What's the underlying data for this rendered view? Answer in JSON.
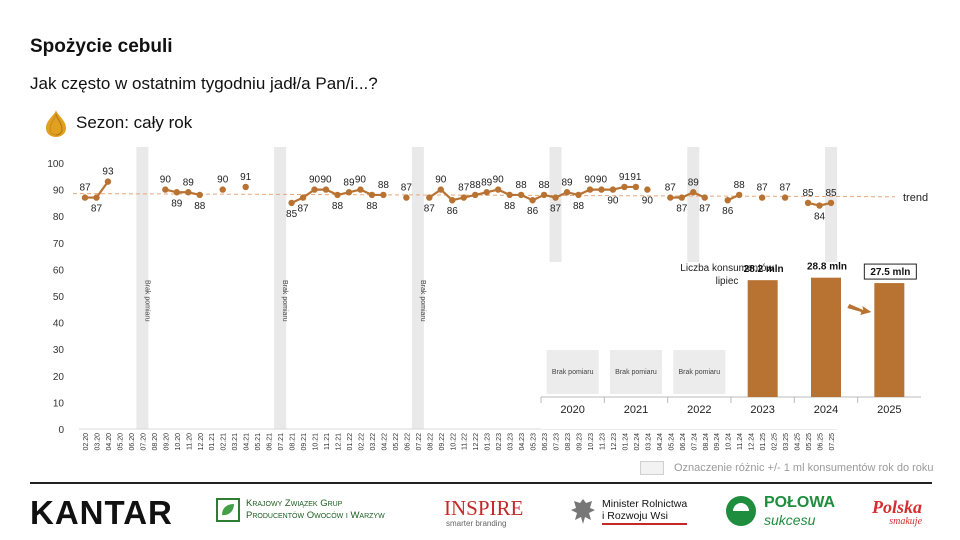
{
  "header": {
    "title": "Spożycie cebuli",
    "subtitle": "Jak często w ostatnim tygodniu jadł/a Pan/i...?",
    "season_label": "Sezon: cały rok"
  },
  "colors": {
    "series": "#b87333",
    "trend": "#e8a87c",
    "bars": "#b87333",
    "gap_band": "#e9e9e9",
    "arrow": "#b87333"
  },
  "icons": {
    "season": "onion-icon"
  },
  "chart_data": [
    {
      "type": "line",
      "y_ticks": [
        0,
        10,
        20,
        30,
        40,
        50,
        60,
        70,
        80,
        90,
        100
      ],
      "ylim": [
        0,
        100
      ],
      "x": [
        "02.20",
        "03.20",
        "04.20",
        "05.20",
        "06.20",
        "07.20",
        "08.20",
        "09.20",
        "10.20",
        "11.20",
        "12.20",
        "01.21",
        "02.21",
        "03.21",
        "04.21",
        "05.21",
        "06.21",
        "07.21",
        "08.21",
        "09.21",
        "10.21",
        "11.21",
        "12.21",
        "01.22",
        "02.22",
        "03.22",
        "04.22",
        "05.22",
        "06.22",
        "07.22",
        "08.22",
        "09.22",
        "10.22",
        "11.22",
        "12.22",
        "01.23",
        "02.23",
        "03.23",
        "04.23",
        "05.23",
        "06.23",
        "07.23",
        "08.23",
        "09.23",
        "10.23",
        "11.23",
        "12.23",
        "01.24",
        "02.24",
        "03.24",
        "04.24",
        "05.24",
        "06.24",
        "07.24",
        "08.24",
        "09.24",
        "10.24",
        "11.24",
        "12.24",
        "01.25",
        "02.25",
        "03.25",
        "04.25",
        "05.25",
        "06.25",
        "07.25"
      ],
      "series": [
        {
          "values": [
            87,
            87,
            93,
            null,
            null,
            null,
            null,
            90,
            89,
            89,
            88,
            null,
            90,
            null,
            91,
            null,
            null,
            null,
            85,
            87,
            90,
            90,
            88,
            89,
            90,
            88,
            88,
            null,
            87,
            null,
            87,
            90,
            86,
            87,
            88,
            89,
            90,
            88,
            88,
            86,
            88,
            87,
            89,
            88,
            90,
            90,
            90,
            91,
            91,
            90,
            null,
            87,
            87,
            89,
            87,
            null,
            86,
            88,
            null,
            87,
            null,
            87,
            null,
            85,
            84,
            85
          ],
          "connected_segments": [
            [
              0,
              2
            ],
            [
              7,
              10
            ],
            [
              18,
              26
            ],
            [
              30,
              48
            ],
            [
              51,
              54
            ],
            [
              56,
              57
            ],
            [
              63,
              65
            ]
          ]
        }
      ],
      "trend": {
        "label": "trend",
        "start": 88.5,
        "end": 87.3
      },
      "gap_bands": [
        {
          "x": "07.20",
          "label": "Brak pomiaru"
        },
        {
          "x": "07.21",
          "label": "Brak pomiaru"
        },
        {
          "x": "07.22",
          "label": "Brak pomiaru"
        },
        {
          "x": "07.23",
          "label": ""
        },
        {
          "x": "07.24",
          "label": ""
        },
        {
          "x": "07.25",
          "label": ""
        }
      ]
    },
    {
      "type": "bar",
      "title": "Liczba konsumentów lipiec",
      "categories": [
        "2020",
        "2021",
        "2022",
        "2023",
        "2024",
        "2025"
      ],
      "values": [
        null,
        null,
        null,
        28.2,
        28.8,
        27.5
      ],
      "value_labels": [
        "Brak pomiaru",
        "Brak pomiaru",
        "Brak pomiaru",
        "28.2 mln",
        "28.8 mln",
        "27.5 mln"
      ],
      "highlight": "2025"
    }
  ],
  "legend_note": "Oznaczenie różnic +/- 1 ml konsumentów rok do roku",
  "logos": {
    "kantar": "KANTAR",
    "kzgpoiw_line1": "Krajowy Związek Grup",
    "kzgpoiw_line2": "Producentów Owoców i Warzyw",
    "inspire_main": "INSPIRE",
    "inspire_sub": "smarter branding",
    "ministerstwo_line1": "Minister Rolnictwa",
    "ministerstwo_line2": "i Rozwoju Wsi",
    "polowa_main": "POŁOWA",
    "polowa_sub": "sukcesu",
    "polska_main": "Polska",
    "polska_sub": "smakuje"
  }
}
